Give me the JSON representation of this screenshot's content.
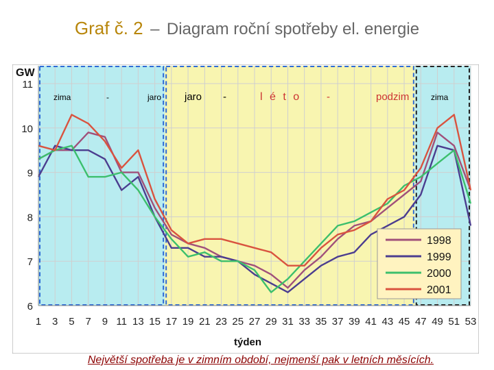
{
  "title": {
    "main": "Graf č. 2",
    "dash": "–",
    "sub": "Diagram roční spotřeby el. energie"
  },
  "caption": "Největší spotřeba je v zimním období, nejmenší pak v letních měsících.",
  "season_labels": [
    "zima",
    "-",
    "jaro",
    "jaro",
    "-",
    "l é t o",
    "-",
    "podzim",
    "zima"
  ],
  "colors": {
    "winter_bg": "#b8ecf0",
    "summer_bg": "#f8f5b0",
    "grid": "#cfcfcf",
    "series": [
      "#a0507a",
      "#4b3d8f",
      "#3cbf6c",
      "#d9533f"
    ]
  },
  "chart_data": {
    "type": "line",
    "ylabel": "GW",
    "xlabel": "týden",
    "ylim": [
      6,
      11
    ],
    "xlim": [
      1,
      53
    ],
    "yticks": [
      6,
      7,
      8,
      9,
      10,
      11
    ],
    "xticks": [
      1,
      3,
      5,
      7,
      9,
      11,
      13,
      15,
      17,
      19,
      21,
      23,
      25,
      27,
      29,
      31,
      33,
      35,
      37,
      39,
      41,
      43,
      45,
      47,
      49,
      51,
      53
    ],
    "legend": "bottom-right",
    "x": [
      1,
      3,
      5,
      7,
      9,
      11,
      13,
      15,
      17,
      19,
      21,
      23,
      25,
      27,
      29,
      31,
      33,
      35,
      37,
      39,
      41,
      43,
      45,
      47,
      49,
      51,
      53
    ],
    "series": [
      {
        "name": "1998",
        "values": [
          9.3,
          9.5,
          9.5,
          9.9,
          9.8,
          9.0,
          9.0,
          8.2,
          7.6,
          7.4,
          7.3,
          7.1,
          7.0,
          6.9,
          6.7,
          6.4,
          6.8,
          7.1,
          7.5,
          7.8,
          7.9,
          8.2,
          8.5,
          8.8,
          9.9,
          9.6,
          8.6
        ]
      },
      {
        "name": "1999",
        "values": [
          8.9,
          9.6,
          9.5,
          9.5,
          9.3,
          8.6,
          8.9,
          8.0,
          7.3,
          7.3,
          7.1,
          7.1,
          7.0,
          6.7,
          6.5,
          6.3,
          6.6,
          6.9,
          7.1,
          7.2,
          7.6,
          7.8,
          8.0,
          8.5,
          9.6,
          9.5,
          7.8
        ]
      },
      {
        "name": "2000",
        "values": [
          9.3,
          9.5,
          9.6,
          8.9,
          8.9,
          9.0,
          8.6,
          8.0,
          7.5,
          7.1,
          7.2,
          7.0,
          7.0,
          6.8,
          6.3,
          6.6,
          7.0,
          7.4,
          7.8,
          7.9,
          8.1,
          8.3,
          8.7,
          8.9,
          9.2,
          9.5,
          8.3
        ]
      },
      {
        "name": "2001",
        "values": [
          9.6,
          9.5,
          10.3,
          10.1,
          9.7,
          9.1,
          9.5,
          8.4,
          7.7,
          7.4,
          7.5,
          7.5,
          7.4,
          7.3,
          7.2,
          6.9,
          6.9,
          7.3,
          7.6,
          7.7,
          7.9,
          8.4,
          8.6,
          9.1,
          10.0,
          10.3,
          8.6
        ]
      }
    ]
  }
}
